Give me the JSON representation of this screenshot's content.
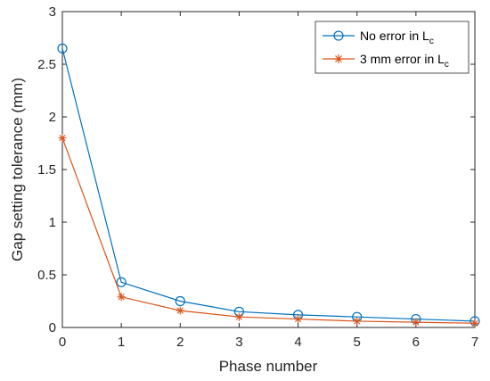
{
  "chart_data": {
    "type": "line",
    "xlabel": "Phase number",
    "ylabel": "Gap setting tolerance (mm)",
    "xlim": [
      0,
      7
    ],
    "ylim": [
      0,
      3
    ],
    "xticks": [
      0,
      1,
      2,
      3,
      4,
      5,
      6,
      7
    ],
    "yticks": [
      0,
      0.5,
      1,
      1.5,
      2,
      2.5,
      3
    ],
    "xtick_labels": [
      "0",
      "1",
      "2",
      "3",
      "4",
      "5",
      "6",
      "7"
    ],
    "ytick_labels": [
      "0",
      "0.5",
      "1",
      "1.5",
      "2",
      "2.5",
      "3"
    ],
    "grid": false,
    "legend_position": "top-right",
    "x": [
      0,
      1,
      2,
      3,
      4,
      5,
      6,
      7
    ],
    "series": [
      {
        "name": "No error in L",
        "name_subscript": "c",
        "marker": "circle",
        "color": "#0072BD",
        "values": [
          2.65,
          0.43,
          0.25,
          0.15,
          0.12,
          0.1,
          0.08,
          0.06
        ]
      },
      {
        "name": "3 mm error in L",
        "name_subscript": "c",
        "marker": "asterisk",
        "color": "#D95319",
        "values": [
          1.8,
          0.29,
          0.16,
          0.1,
          0.08,
          0.06,
          0.05,
          0.04
        ]
      }
    ]
  }
}
